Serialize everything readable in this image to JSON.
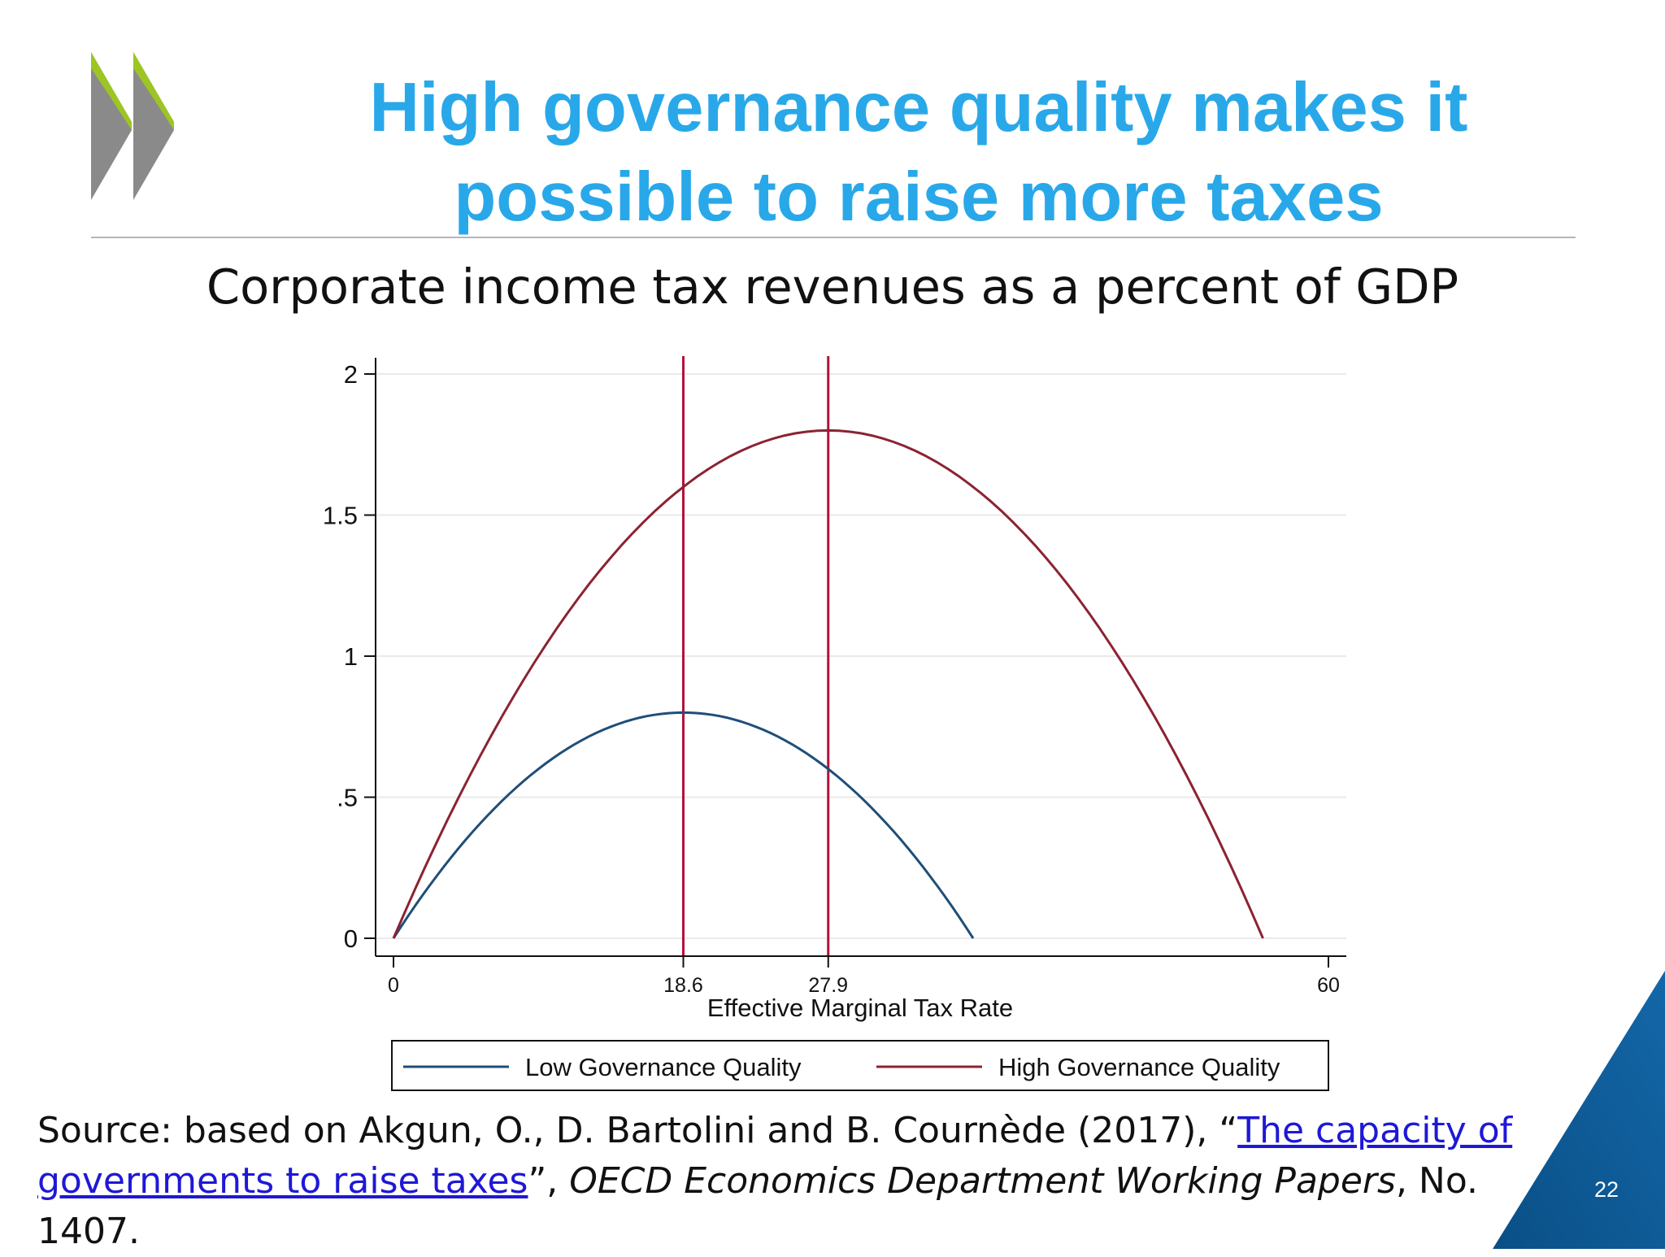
{
  "slide": {
    "title_line1": "High governance quality makes it",
    "title_line2": "possible to raise more taxes",
    "subtitle": "Corporate income tax revenues as a percent of GDP",
    "page_number": "22",
    "accent_color": "#29a8e9",
    "logo": "oecd-chevron-logo"
  },
  "source": {
    "prefix": "Source: based on Akgun, O., D. Bartolini and B. Cournède (2017), “",
    "link_text": "The capacity of governments to raise taxes",
    "middle": "”, ",
    "italic": "OECD Economics Department Working Papers",
    "suffix": ", No. 1407."
  },
  "chart_data": {
    "type": "line",
    "xlabel": "Effective Marginal Tax Rate",
    "ylabel": "",
    "xlim": [
      0,
      60
    ],
    "ylim": [
      0,
      2
    ],
    "x_ticks": [
      0,
      18.6,
      27.9,
      60
    ],
    "x_tick_labels": [
      "0",
      "18.6",
      "27.9",
      "60"
    ],
    "y_ticks": [
      0,
      0.5,
      1,
      1.5,
      2
    ],
    "y_tick_labels": [
      "0",
      ".5",
      "1",
      "1.5",
      "2"
    ],
    "grid": true,
    "legend_position": "bottom",
    "vertical_lines": [
      {
        "x": 18.6,
        "color": "#b3123a"
      },
      {
        "x": 27.9,
        "color": "#b3123a"
      }
    ],
    "series": [
      {
        "name": "Low Governance Quality",
        "color": "#1f4e79",
        "x": [
          0,
          3.72,
          7.44,
          11.16,
          14.88,
          18.6,
          22.32,
          26.04,
          29.76,
          33.48,
          37.2
        ],
        "y": [
          0,
          0.288,
          0.512,
          0.672,
          0.768,
          0.8,
          0.768,
          0.672,
          0.512,
          0.288,
          0
        ]
      },
      {
        "name": "High Governance Quality",
        "color": "#8b2332",
        "x": [
          0,
          5.58,
          11.16,
          16.74,
          22.32,
          27.9,
          33.48,
          39.06,
          44.64,
          50.22,
          55.8
        ],
        "y": [
          0,
          0.648,
          1.152,
          1.512,
          1.728,
          1.8,
          1.728,
          1.512,
          1.152,
          0.648,
          0
        ]
      }
    ]
  }
}
